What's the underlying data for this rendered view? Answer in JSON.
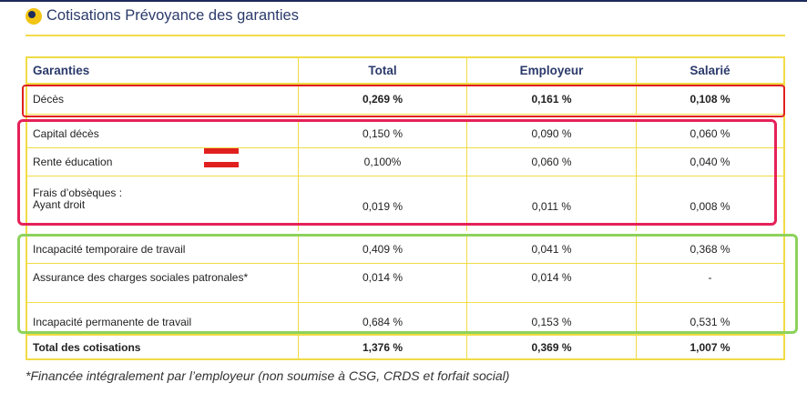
{
  "header": {
    "title": "Cotisations Prévoyance des garanties"
  },
  "table": {
    "columns": [
      "Garanties",
      "Total",
      "Employeur",
      "Salarié"
    ],
    "rows": [
      {
        "label": "Décès",
        "total": "0,269 %",
        "employeur": "0,161 %",
        "salarie": "0,108 %"
      },
      {
        "label": "Capital décès",
        "total": "0,150 %",
        "employeur": "0,090 %",
        "salarie": "0,060 %"
      },
      {
        "label": "Rente éducation",
        "total": "0,100%",
        "employeur": "0,060 %",
        "salarie": "0,040 %"
      },
      {
        "label_line1": "Frais d’obsèques :",
        "label_line2": "Ayant droit",
        "total": "0,019 %",
        "employeur": "0,011 %",
        "salarie": "0,008 %"
      },
      {
        "label": "Incapacité temporaire de travail",
        "total": "0,409 %",
        "employeur": "0,041 %",
        "salarie": "0,368 %"
      },
      {
        "label": "Assurance des charges sociales patronales*",
        "total": "0,014 %",
        "employeur": "0,014 %",
        "salarie": "-"
      },
      {
        "label": "Incapacité permanente de travail",
        "total": "0,684 %",
        "employeur": "0,153 %",
        "salarie": "0,531 %"
      },
      {
        "label": "Total des cotisations",
        "total": "1,376 %",
        "employeur": "0,369 %",
        "salarie": "1,007 %"
      }
    ]
  },
  "footnote": "*Financée intégralement par l’employeur (non soumise à CSG, CRDS et forfait social)",
  "colors": {
    "navy": "#1d2a5c",
    "yellow": "#f2c414",
    "red": "#e01f1f",
    "pink": "#e5215a",
    "green": "#8dd25c"
  }
}
